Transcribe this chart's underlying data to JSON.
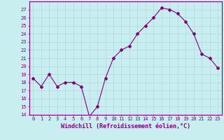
{
  "x": [
    0,
    1,
    2,
    3,
    4,
    5,
    6,
    7,
    8,
    9,
    10,
    11,
    12,
    13,
    14,
    15,
    16,
    17,
    18,
    19,
    20,
    21,
    22,
    23
  ],
  "y": [
    18.5,
    17.5,
    19.0,
    17.5,
    18.0,
    18.0,
    17.5,
    13.8,
    15.0,
    18.5,
    21.0,
    22.0,
    22.5,
    24.0,
    25.0,
    26.0,
    27.2,
    27.0,
    26.5,
    25.5,
    24.0,
    21.5,
    21.0,
    19.8
  ],
  "line_color": "#800080",
  "marker": "D",
  "marker_size": 2,
  "bg_color": "#c8eef0",
  "grid_color": "#b0d8dc",
  "xlabel": "Windchill (Refroidissement éolien,°C)",
  "ylim": [
    14,
    28
  ],
  "xlim": [
    -0.5,
    23.5
  ],
  "yticks": [
    14,
    15,
    16,
    17,
    18,
    19,
    20,
    21,
    22,
    23,
    24,
    25,
    26,
    27
  ],
  "xticks": [
    0,
    1,
    2,
    3,
    4,
    5,
    6,
    7,
    8,
    9,
    10,
    11,
    12,
    13,
    14,
    15,
    16,
    17,
    18,
    19,
    20,
    21,
    22,
    23
  ],
  "tick_color": "#800080",
  "label_color": "#800080",
  "spine_color": "#800080",
  "tick_fontsize": 5.0,
  "xlabel_fontsize": 6.0
}
